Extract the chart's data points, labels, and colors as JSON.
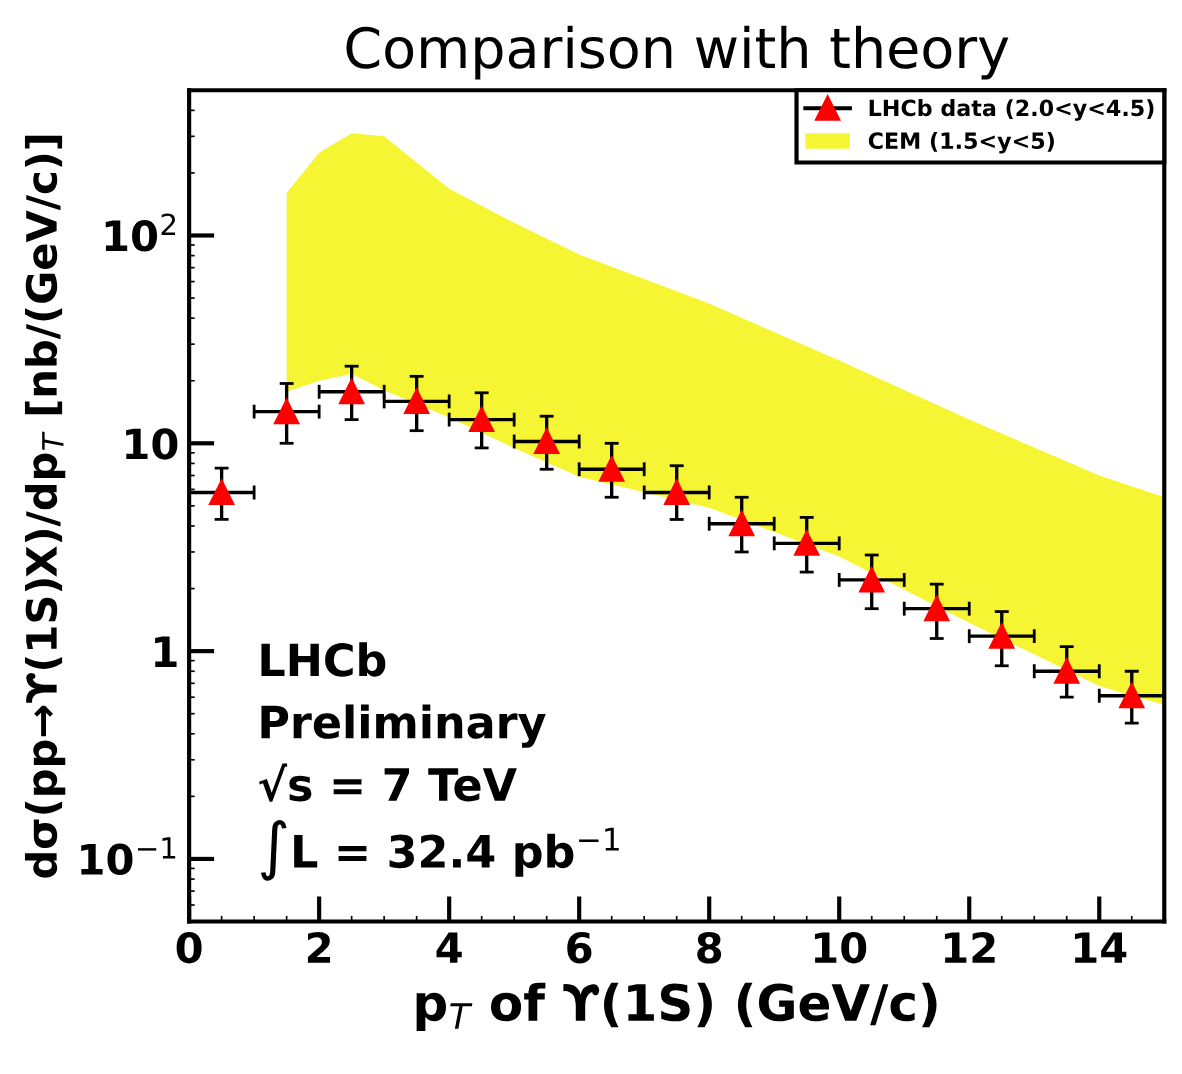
{
  "chart_data": {
    "type": "scatter",
    "title": "Comparison with theory",
    "xlabel": "p$_{T}$ of ϒ(1S) (GeV/c)",
    "ylabel": "dσ(pp→ϒ(1S)X)/dp$_{T}$ [nb/(GeV/c)]",
    "log": "y",
    "xlim": [
      0,
      15
    ],
    "ylim": [
      0.05,
      500
    ],
    "xticks": [
      0,
      2,
      4,
      6,
      8,
      10,
      12,
      14
    ],
    "yticks": [
      {
        "value": 0.1,
        "label": "10$^{−1}$"
      },
      1,
      10,
      {
        "value": 100,
        "label": "10$^{2}$"
      }
    ],
    "legend": "top right",
    "grid": false,
    "annotations": [
      "LHCb",
      "Preliminary",
      "√s = 7 TeV",
      "∫L = 32.4 pb$^{−1}$"
    ],
    "series": [
      {
        "type": "line",
        "name": "CEM (1.5<y<5)",
        "color": "#f5f534",
        "x": [
          1.5,
          2,
          2.5,
          3,
          4,
          5,
          6,
          8,
          10,
          12,
          14,
          15
        ],
        "values": [
          null,
          null,
          null,
          null,
          null,
          null,
          null,
          null,
          null,
          null,
          null,
          null
        ],
        "upper": [
          160,
          250,
          310,
          300,
          168,
          115,
          81,
          47,
          25,
          13,
          7,
          5.5
        ],
        "lower": [
          17.7,
          20,
          21.6,
          18,
          13.3,
          9.5,
          6.9,
          4.9,
          2.85,
          1.37,
          0.68,
          0.55
        ]
      },
      {
        "name": "LHCb data (2.0<y<4.5)",
        "color": "#ff0000",
        "marker": "triangle",
        "x": [
          0.5,
          1.5,
          2.5,
          3.5,
          4.5,
          5.5,
          6.5,
          7.5,
          8.5,
          9.5,
          10.5,
          11.5,
          12.5,
          13.5,
          14.5
        ],
        "values": [
          5.8,
          14.2,
          17.7,
          15.9,
          13.0,
          10.2,
          7.5,
          5.8,
          4.1,
          3.3,
          2.2,
          1.6,
          1.18,
          0.8,
          0.61
        ],
        "errors": [
          [
            4.3,
            7.6
          ],
          [
            10,
            19.4
          ],
          [
            13,
            23.5
          ],
          [
            11.5,
            21
          ],
          [
            9.5,
            17.5
          ],
          [
            7.5,
            13.5
          ],
          [
            5.5,
            10
          ],
          [
            4.3,
            7.8
          ],
          [
            3.0,
            5.5
          ],
          [
            2.4,
            4.4
          ],
          [
            1.6,
            2.9
          ],
          [
            1.15,
            2.1
          ],
          [
            0.85,
            1.55
          ],
          [
            0.6,
            1.05
          ],
          [
            0.45,
            0.8
          ]
        ],
        "xerrors": [
          0.5,
          0.5,
          0.5,
          0.5,
          0.5,
          0.5,
          0.5,
          0.5,
          0.5,
          0.5,
          0.5,
          0.5,
          0.5,
          0.5,
          0.5
        ]
      }
    ]
  }
}
